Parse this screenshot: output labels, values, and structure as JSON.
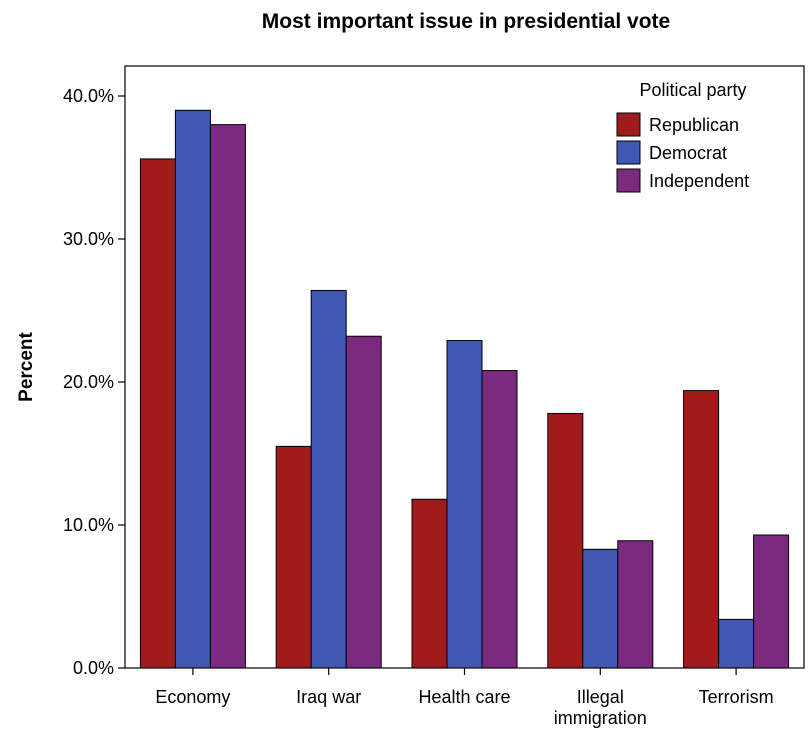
{
  "chart_data": {
    "type": "bar",
    "title": "Most important issue in presidential vote",
    "xlabel": "",
    "ylabel": "Percent",
    "ylim": [
      0,
      40
    ],
    "y_ticks": [
      "0.0%",
      "10.0%",
      "20.0%",
      "30.0%",
      "40.0%"
    ],
    "y_tick_values": [
      0,
      10,
      20,
      30,
      40
    ],
    "categories": [
      "Economy",
      "Iraq war",
      "Health care",
      "Illegal immigration",
      "Terrorism"
    ],
    "category_label_lines": [
      [
        "Economy"
      ],
      [
        "Iraq war"
      ],
      [
        "Health care"
      ],
      [
        "Illegal",
        "immigration"
      ],
      [
        "Terrorism"
      ]
    ],
    "legend": {
      "title": "Political party",
      "position": "top-right"
    },
    "grid": false,
    "series": [
      {
        "name": "Republican",
        "color": "#a01c1c",
        "values": [
          35.6,
          15.5,
          11.8,
          17.8,
          19.4
        ]
      },
      {
        "name": "Democrat",
        "color": "#3e58b4",
        "values": [
          39.0,
          26.4,
          22.9,
          8.3,
          3.4
        ]
      },
      {
        "name": "Independent",
        "color": "#7b2a7f",
        "values": [
          38.0,
          23.2,
          20.8,
          8.9,
          9.3
        ]
      }
    ]
  }
}
